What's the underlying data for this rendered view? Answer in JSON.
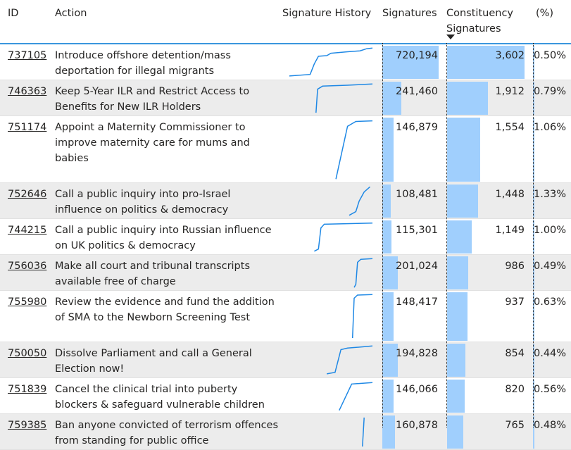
{
  "header": {
    "id": "ID",
    "action": "Action",
    "history": "Signature History",
    "signatures": "Signatures",
    "constituency_line1": "Constituency",
    "constituency_line2": "Signatures",
    "pct": "(%)",
    "sort": "sort-descending-icon"
  },
  "colors": {
    "accent": "#3a96dd",
    "bar": "#a0cffd",
    "sparkline": "#1e88e5",
    "row_alt": "#ececec"
  },
  "rows": [
    {
      "id": "737105",
      "action": "Introduce offshore detention/mass deportation for illegal migrants",
      "signatures": "720,194",
      "sig_value": 720194,
      "constituency": "3,602",
      "con_value": 3602,
      "pct": "0.50%",
      "pct_value": 0.5,
      "lines": 2,
      "spark": [
        [
          0,
          0.05
        ],
        [
          0.25,
          0.1
        ],
        [
          0.3,
          0.45
        ],
        [
          0.35,
          0.7
        ],
        [
          0.45,
          0.72
        ],
        [
          0.5,
          0.8
        ],
        [
          0.7,
          0.85
        ],
        [
          0.85,
          0.88
        ],
        [
          0.93,
          0.95
        ],
        [
          1,
          0.97
        ]
      ]
    },
    {
      "id": "746363",
      "action": "Keep 5-Year ILR and Restrict Access to Benefits for New ILR Holders",
      "signatures": "241,460",
      "sig_value": 241460,
      "constituency": "1,912",
      "con_value": 1912,
      "pct": "0.79%",
      "pct_value": 0.79,
      "lines": 2,
      "spark": [
        [
          0.32,
          0.02
        ],
        [
          0.34,
          0.8
        ],
        [
          0.4,
          0.9
        ],
        [
          0.7,
          0.93
        ],
        [
          1,
          0.97
        ]
      ]
    },
    {
      "id": "751174",
      "action": "Appoint a Maternity Commissioner to improve maternity care for mums and babies",
      "signatures": "146,879",
      "sig_value": 146879,
      "constituency": "1,554",
      "con_value": 1554,
      "pct": "1.06%",
      "pct_value": 1.06,
      "lines": 4,
      "spark": [
        [
          0.56,
          0.02
        ],
        [
          0.7,
          0.88
        ],
        [
          0.8,
          0.96
        ],
        [
          1,
          0.97
        ]
      ]
    },
    {
      "id": "752646",
      "action": "Call a public inquiry into pro-Israel influence on politics & democracy",
      "signatures": "108,481",
      "sig_value": 108481,
      "constituency": "1,448",
      "con_value": 1448,
      "pct": "1.33%",
      "pct_value": 1.33,
      "lines": 2,
      "spark": [
        [
          0.72,
          0.03
        ],
        [
          0.8,
          0.15
        ],
        [
          0.84,
          0.5
        ],
        [
          0.9,
          0.8
        ],
        [
          0.97,
          0.97
        ]
      ]
    },
    {
      "id": "744215",
      "action": "Call a public inquiry into Russian influence on UK politics & democracy",
      "signatures": "115,301",
      "sig_value": 115301,
      "constituency": "1,149",
      "con_value": 1149,
      "pct": "1.00%",
      "pct_value": 1.0,
      "lines": 2,
      "spark": [
        [
          0.3,
          0.03
        ],
        [
          0.35,
          0.1
        ],
        [
          0.38,
          0.8
        ],
        [
          0.42,
          0.92
        ],
        [
          1,
          0.96
        ]
      ]
    },
    {
      "id": "756036",
      "action": "Make all court and tribunal transcripts available free of charge",
      "signatures": "201,024",
      "sig_value": 201024,
      "constituency": "986",
      "con_value": 986,
      "pct": "0.49%",
      "pct_value": 0.49,
      "lines": 2,
      "spark": [
        [
          0.78,
          0.02
        ],
        [
          0.8,
          0.12
        ],
        [
          0.82,
          0.85
        ],
        [
          0.86,
          0.95
        ],
        [
          1,
          0.97
        ]
      ]
    },
    {
      "id": "755980",
      "action": "Review the evidence and fund the addition of SMA to the Newborn Screening Test",
      "signatures": "148,417",
      "sig_value": 148417,
      "constituency": "937",
      "con_value": 937,
      "pct": "0.63%",
      "pct_value": 0.63,
      "lines": 3,
      "spark": [
        [
          0.76,
          0.03
        ],
        [
          0.78,
          0.9
        ],
        [
          0.82,
          0.97
        ],
        [
          1,
          0.98
        ]
      ]
    },
    {
      "id": "750050",
      "action": "Dissolve Parliament and call a General Election now!",
      "signatures": "194,828",
      "sig_value": 194828,
      "constituency": "854",
      "con_value": 854,
      "pct": "0.44%",
      "pct_value": 0.44,
      "lines": 2,
      "spark": [
        [
          0.45,
          0.05
        ],
        [
          0.55,
          0.1
        ],
        [
          0.62,
          0.85
        ],
        [
          0.7,
          0.9
        ],
        [
          1,
          0.97
        ]
      ]
    },
    {
      "id": "751839",
      "action": "Cancel the clinical trial into puberty blockers & safeguard vulnerable children",
      "signatures": "146,066",
      "sig_value": 146066,
      "constituency": "820",
      "con_value": 820,
      "pct": "0.56%",
      "pct_value": 0.56,
      "lines": 2,
      "spark": [
        [
          0.6,
          0.03
        ],
        [
          0.75,
          0.9
        ],
        [
          1,
          0.95
        ]
      ]
    },
    {
      "id": "759385",
      "action": "Ban anyone convicted of terrorism offences from standing for public office",
      "signatures": "160,878",
      "sig_value": 160878,
      "constituency": "765",
      "con_value": 765,
      "pct": "0.48%",
      "pct_value": 0.48,
      "lines": 2,
      "spark": [
        [
          0.88,
          0.02
        ],
        [
          0.89,
          0.5
        ],
        [
          0.9,
          0.98
        ]
      ]
    }
  ]
}
